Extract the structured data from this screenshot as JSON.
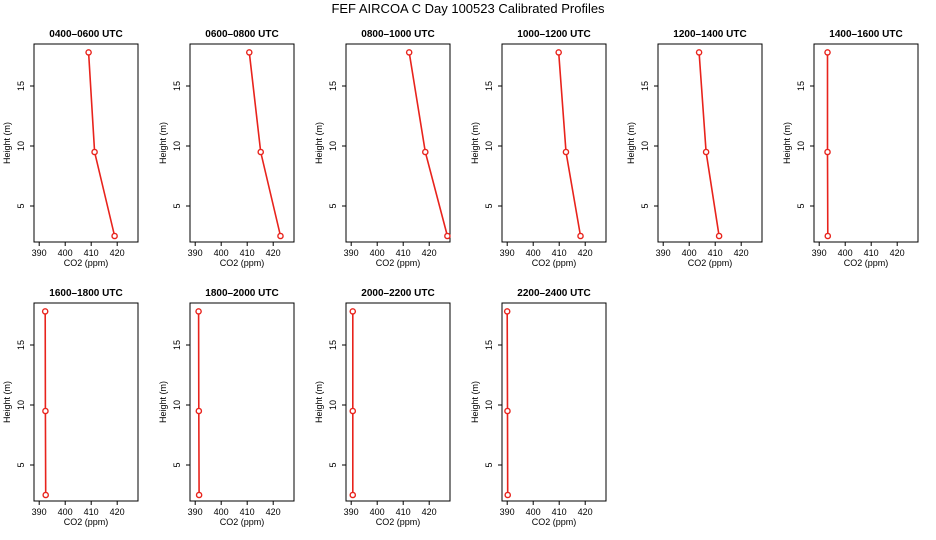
{
  "title": "FEF AIRCOA C  Day 100523  Calibrated Profiles",
  "chart_data": [
    {
      "type": "line",
      "title": "0400–0600 UTC",
      "xlabel": "CO2 (ppm)",
      "ylabel": "Height (m)",
      "xlim": [
        388,
        428
      ],
      "ylim": [
        2,
        18.5
      ],
      "xticks": [
        390,
        400,
        410,
        420
      ],
      "yticks": [
        5,
        10,
        15
      ],
      "x": [
        409,
        411.3,
        419
      ],
      "y": [
        17.8,
        9.5,
        2.5
      ]
    },
    {
      "type": "line",
      "title": "0600–0800 UTC",
      "xlabel": "CO2 (ppm)",
      "ylabel": "Height (m)",
      "xlim": [
        388,
        428
      ],
      "ylim": [
        2,
        18.5
      ],
      "xticks": [
        390,
        400,
        410,
        420
      ],
      "yticks": [
        5,
        10,
        15
      ],
      "x": [
        410.8,
        415.2,
        422.8
      ],
      "y": [
        17.8,
        9.5,
        2.5
      ]
    },
    {
      "type": "line",
      "title": "0800–1000 UTC",
      "xlabel": "CO2 (ppm)",
      "ylabel": "Height (m)",
      "xlim": [
        388,
        428
      ],
      "ylim": [
        2,
        18.5
      ],
      "xticks": [
        390,
        400,
        410,
        420
      ],
      "yticks": [
        5,
        10,
        15
      ],
      "x": [
        412.3,
        418.5,
        427
      ],
      "y": [
        17.8,
        9.5,
        2.5
      ]
    },
    {
      "type": "line",
      "title": "1000–1200 UTC",
      "xlabel": "CO2 (ppm)",
      "ylabel": "Height (m)",
      "xlim": [
        388,
        428
      ],
      "ylim": [
        2,
        18.5
      ],
      "xticks": [
        390,
        400,
        410,
        420
      ],
      "yticks": [
        5,
        10,
        15
      ],
      "x": [
        409.8,
        412.6,
        418.2
      ],
      "y": [
        17.8,
        9.5,
        2.5
      ]
    },
    {
      "type": "line",
      "title": "1200–1400 UTC",
      "xlabel": "CO2 (ppm)",
      "ylabel": "Height (m)",
      "xlim": [
        388,
        428
      ],
      "ylim": [
        2,
        18.5
      ],
      "xticks": [
        390,
        400,
        410,
        420
      ],
      "yticks": [
        5,
        10,
        15
      ],
      "x": [
        403.8,
        406.5,
        411.5
      ],
      "y": [
        17.8,
        9.5,
        2.5
      ]
    },
    {
      "type": "line",
      "title": "1400–1600 UTC",
      "xlabel": "CO2 (ppm)",
      "ylabel": "Height (m)",
      "xlim": [
        388,
        428
      ],
      "ylim": [
        2,
        18.5
      ],
      "xticks": [
        390,
        400,
        410,
        420
      ],
      "yticks": [
        5,
        10,
        15
      ],
      "x": [
        393.2,
        393.2,
        393.3
      ],
      "y": [
        17.8,
        9.5,
        2.5
      ]
    },
    {
      "type": "line",
      "title": "1600–1800 UTC",
      "xlabel": "CO2 (ppm)",
      "ylabel": "Height (m)",
      "xlim": [
        388,
        428
      ],
      "ylim": [
        2,
        18.5
      ],
      "xticks": [
        390,
        400,
        410,
        420
      ],
      "yticks": [
        5,
        10,
        15
      ],
      "x": [
        392.3,
        392.4,
        392.5
      ],
      "y": [
        17.8,
        9.5,
        2.5
      ]
    },
    {
      "type": "line",
      "title": "1800–2000 UTC",
      "xlabel": "CO2 (ppm)",
      "ylabel": "Height (m)",
      "xlim": [
        388,
        428
      ],
      "ylim": [
        2,
        18.5
      ],
      "xticks": [
        390,
        400,
        410,
        420
      ],
      "yticks": [
        5,
        10,
        15
      ],
      "x": [
        391.3,
        391.4,
        391.5
      ],
      "y": [
        17.8,
        9.5,
        2.5
      ]
    },
    {
      "type": "line",
      "title": "2000–2200 UTC",
      "xlabel": "CO2 (ppm)",
      "ylabel": "Height (m)",
      "xlim": [
        388,
        428
      ],
      "ylim": [
        2,
        18.5
      ],
      "xticks": [
        390,
        400,
        410,
        420
      ],
      "yticks": [
        5,
        10,
        15
      ],
      "x": [
        390.6,
        390.6,
        390.6
      ],
      "y": [
        17.8,
        9.5,
        2.5
      ]
    },
    {
      "type": "line",
      "title": "2200–2400 UTC",
      "xlabel": "CO2 (ppm)",
      "ylabel": "Height (m)",
      "xlim": [
        388,
        428
      ],
      "ylim": [
        2,
        18.5
      ],
      "xticks": [
        390,
        400,
        410,
        420
      ],
      "yticks": [
        5,
        10,
        15
      ],
      "x": [
        390,
        390.1,
        390.2
      ],
      "y": [
        17.8,
        9.5,
        2.5
      ]
    }
  ]
}
